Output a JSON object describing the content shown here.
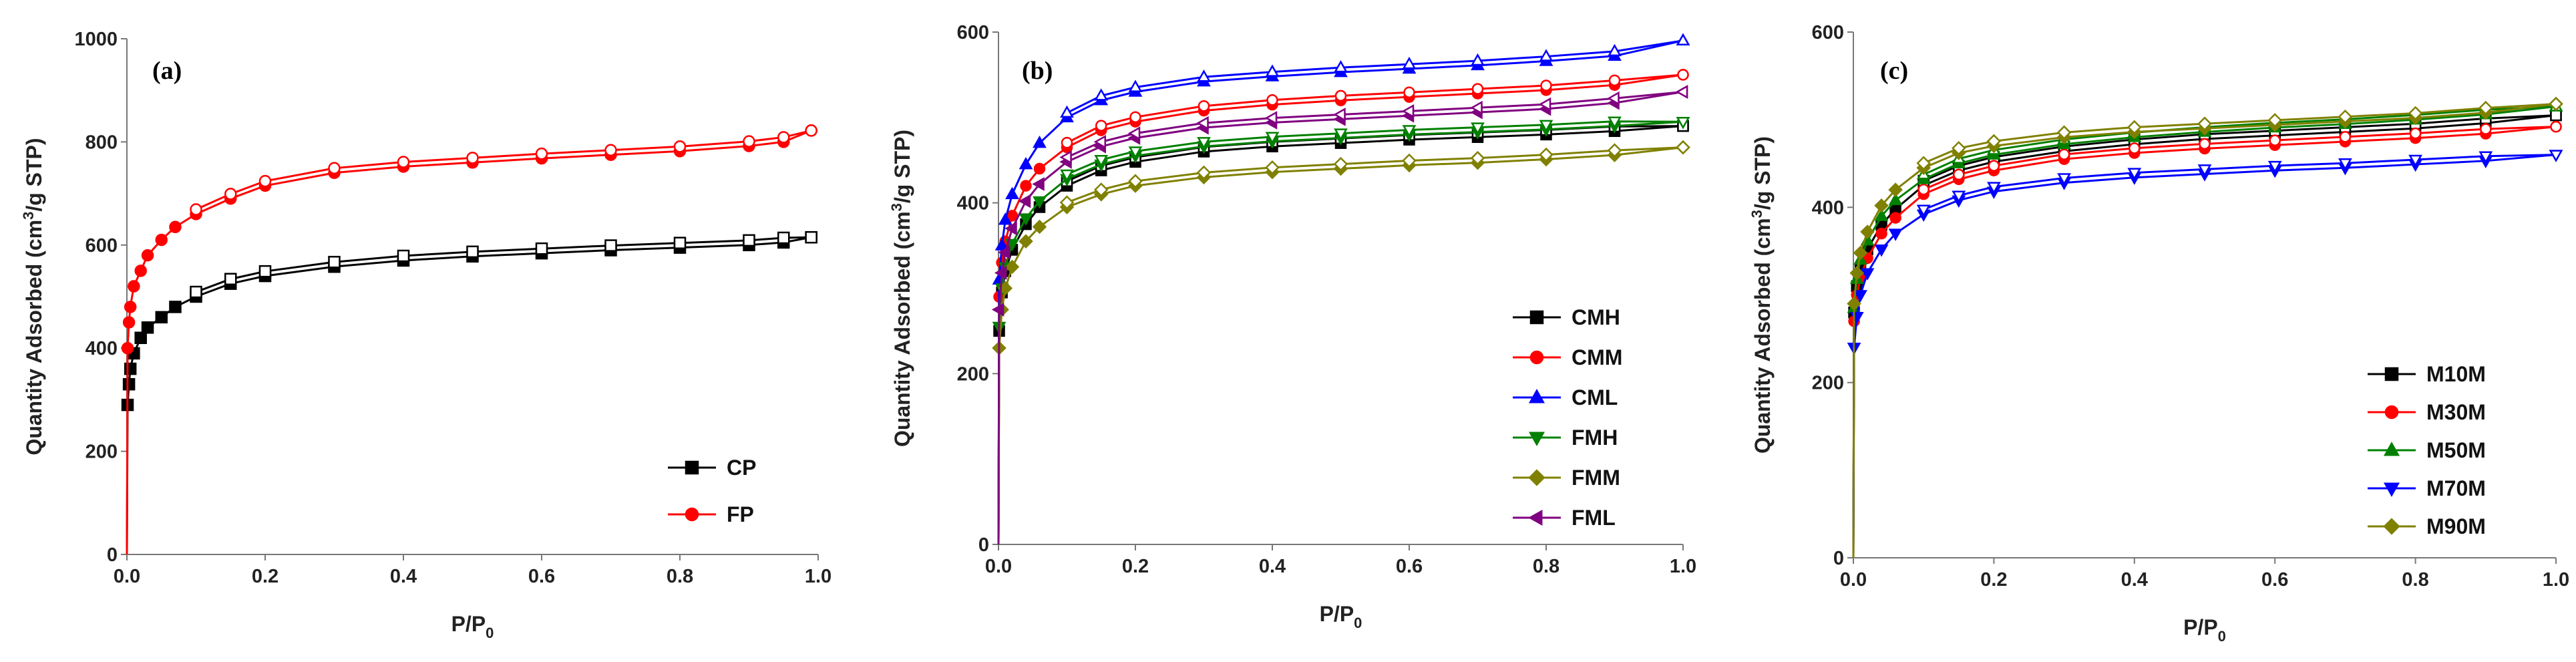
{
  "chart_data": [
    {
      "type": "line",
      "panel_label": "(a)",
      "xlabel": "P/P0",
      "xlabel_main": "P/P",
      "xlabel_sub": "0",
      "ylabel": "Quantity Adsorbed (cm3/g STP)",
      "ylabel_pre": "Quantity Adsorbed (cm",
      "ylabel_sup": "3",
      "ylabel_post": "/g STP)",
      "xlim": [
        0,
        1.0
      ],
      "ylim": [
        0,
        1000
      ],
      "xticks": [
        "0.0",
        "0.2",
        "0.4",
        "0.6",
        "0.8",
        "1.0"
      ],
      "yticks": [
        "0",
        "200",
        "400",
        "600",
        "800",
        "1000"
      ],
      "legend_position": "bottom-right",
      "series": [
        {
          "name": "CP",
          "color": "#000000",
          "marker": "square",
          "x": [
            0,
            0.001,
            0.003,
            0.005,
            0.01,
            0.02,
            0.03,
            0.05,
            0.07,
            0.1,
            0.15,
            0.2,
            0.3,
            0.4,
            0.5,
            0.6,
            0.7,
            0.8,
            0.9,
            0.95,
            0.99
          ],
          "y": [
            0,
            290,
            330,
            360,
            390,
            420,
            440,
            460,
            480,
            500,
            525,
            540,
            558,
            570,
            578,
            584,
            590,
            595,
            600,
            605,
            615
          ]
        },
        {
          "name": "FP",
          "color": "#ff0000",
          "marker": "circle",
          "x": [
            0,
            0.001,
            0.003,
            0.005,
            0.01,
            0.02,
            0.03,
            0.05,
            0.07,
            0.1,
            0.15,
            0.2,
            0.3,
            0.4,
            0.5,
            0.6,
            0.7,
            0.8,
            0.9,
            0.95,
            0.99
          ],
          "y": [
            0,
            400,
            450,
            480,
            520,
            550,
            580,
            610,
            635,
            660,
            690,
            715,
            740,
            752,
            760,
            768,
            775,
            782,
            792,
            800,
            822
          ]
        }
      ]
    },
    {
      "type": "line",
      "panel_label": "(b)",
      "xlabel": "P/P0",
      "xlabel_main": "P/P",
      "xlabel_sub": "0",
      "ylabel": "Quantity Adsorbed (cm3/g STP)",
      "ylabel_pre": "Quantity Adsorbed (cm",
      "ylabel_sup": "3",
      "ylabel_post": "/g STP)",
      "xlim": [
        0,
        1.0
      ],
      "ylim": [
        0,
        600
      ],
      "xticks": [
        "0.0",
        "0.2",
        "0.4",
        "0.6",
        "0.8",
        "1.0"
      ],
      "yticks": [
        "0",
        "200",
        "400",
        "600"
      ],
      "legend_position": "bottom-right",
      "series": [
        {
          "name": "CMH",
          "color": "#000000",
          "marker": "square",
          "x": [
            0,
            0.001,
            0.005,
            0.01,
            0.02,
            0.04,
            0.06,
            0.1,
            0.15,
            0.2,
            0.3,
            0.4,
            0.5,
            0.6,
            0.7,
            0.8,
            0.9,
            1.0
          ],
          "y": [
            0,
            250,
            295,
            320,
            345,
            375,
            395,
            420,
            438,
            448,
            460,
            466,
            470,
            474,
            477,
            480,
            484,
            490
          ]
        },
        {
          "name": "CMM",
          "color": "#ff0000",
          "marker": "circle",
          "x": [
            0,
            0.001,
            0.005,
            0.01,
            0.02,
            0.04,
            0.06,
            0.1,
            0.15,
            0.2,
            0.3,
            0.4,
            0.5,
            0.6,
            0.7,
            0.8,
            0.9,
            1.0
          ],
          "y": [
            0,
            290,
            330,
            355,
            385,
            420,
            440,
            465,
            485,
            495,
            508,
            515,
            520,
            524,
            528,
            532,
            538,
            550
          ]
        },
        {
          "name": "CML",
          "color": "#0000ff",
          "marker": "triangle",
          "x": [
            0,
            0.001,
            0.005,
            0.01,
            0.02,
            0.04,
            0.06,
            0.1,
            0.15,
            0.2,
            0.3,
            0.4,
            0.5,
            0.6,
            0.7,
            0.8,
            0.9,
            1.0
          ],
          "y": [
            0,
            310,
            350,
            380,
            410,
            445,
            470,
            500,
            520,
            530,
            542,
            548,
            553,
            557,
            561,
            566,
            572,
            590
          ]
        },
        {
          "name": "FMH",
          "color": "#008000",
          "marker": "triangle-down",
          "x": [
            0,
            0.001,
            0.005,
            0.01,
            0.02,
            0.04,
            0.06,
            0.1,
            0.15,
            0.2,
            0.3,
            0.4,
            0.5,
            0.6,
            0.7,
            0.8,
            0.9,
            1.0
          ],
          "y": [
            0,
            255,
            300,
            325,
            352,
            382,
            402,
            428,
            445,
            455,
            466,
            472,
            476,
            480,
            483,
            486,
            490,
            495
          ]
        },
        {
          "name": "FMM",
          "color": "#808000",
          "marker": "diamond",
          "x": [
            0,
            0.001,
            0.005,
            0.01,
            0.02,
            0.04,
            0.06,
            0.1,
            0.15,
            0.2,
            0.3,
            0.4,
            0.5,
            0.6,
            0.7,
            0.8,
            0.9,
            1.0
          ],
          "y": [
            0,
            230,
            275,
            300,
            325,
            355,
            372,
            395,
            410,
            420,
            430,
            436,
            440,
            444,
            447,
            451,
            456,
            465
          ]
        },
        {
          "name": "FML",
          "color": "#800080",
          "marker": "triangle-left",
          "x": [
            0,
            0.001,
            0.005,
            0.01,
            0.02,
            0.04,
            0.06,
            0.1,
            0.15,
            0.2,
            0.3,
            0.4,
            0.5,
            0.6,
            0.7,
            0.8,
            0.9,
            1.0
          ],
          "y": [
            0,
            275,
            318,
            342,
            370,
            402,
            422,
            448,
            466,
            476,
            488,
            494,
            498,
            502,
            506,
            510,
            517,
            530
          ]
        }
      ]
    },
    {
      "type": "line",
      "panel_label": "(c)",
      "xlabel": "P/P0",
      "xlabel_main": "P/P",
      "xlabel_sub": "0",
      "ylabel": "Quantity Adsorbed (cm3/g STP)",
      "ylabel_pre": "Quantity Adsorbed (cm",
      "ylabel_sup": "3",
      "ylabel_post": "/g STP)",
      "xlim": [
        0,
        1.0
      ],
      "ylim": [
        0,
        600
      ],
      "xticks": [
        "0.0",
        "0.2",
        "0.4",
        "0.6",
        "0.8",
        "1.0"
      ],
      "yticks": [
        "0",
        "200",
        "400",
        "600"
      ],
      "legend_position": "bottom-right",
      "series": [
        {
          "name": "M10M",
          "color": "#000000",
          "marker": "square",
          "x": [
            0,
            0.001,
            0.005,
            0.01,
            0.02,
            0.04,
            0.06,
            0.1,
            0.15,
            0.2,
            0.3,
            0.4,
            0.5,
            0.6,
            0.7,
            0.8,
            0.9,
            1.0
          ],
          "y": [
            0,
            280,
            310,
            330,
            352,
            380,
            398,
            425,
            442,
            452,
            464,
            472,
            478,
            482,
            486,
            490,
            496,
            505
          ]
        },
        {
          "name": "M30M",
          "color": "#ff0000",
          "marker": "circle",
          "x": [
            0,
            0.001,
            0.005,
            0.01,
            0.02,
            0.04,
            0.06,
            0.1,
            0.15,
            0.2,
            0.3,
            0.4,
            0.5,
            0.6,
            0.7,
            0.8,
            0.9,
            1.0
          ],
          "y": [
            0,
            270,
            300,
            320,
            342,
            370,
            388,
            415,
            432,
            442,
            455,
            462,
            467,
            471,
            475,
            479,
            484,
            492
          ]
        },
        {
          "name": "M50M",
          "color": "#008000",
          "marker": "triangle",
          "x": [
            0,
            0.001,
            0.005,
            0.01,
            0.02,
            0.04,
            0.06,
            0.1,
            0.15,
            0.2,
            0.3,
            0.4,
            0.5,
            0.6,
            0.7,
            0.8,
            0.9,
            1.0
          ],
          "y": [
            0,
            285,
            318,
            340,
            362,
            390,
            408,
            432,
            450,
            460,
            472,
            480,
            486,
            491,
            495,
            500,
            506,
            515
          ]
        },
        {
          "name": "M70M",
          "color": "#0000ff",
          "marker": "triangle-down",
          "x": [
            0,
            0.001,
            0.005,
            0.01,
            0.02,
            0.04,
            0.06,
            0.1,
            0.15,
            0.2,
            0.3,
            0.4,
            0.5,
            0.6,
            0.7,
            0.8,
            0.9,
            1.0
          ],
          "y": [
            0,
            240,
            275,
            300,
            325,
            352,
            370,
            392,
            408,
            418,
            428,
            434,
            438,
            442,
            445,
            449,
            453,
            460
          ]
        },
        {
          "name": "M90M",
          "color": "#808000",
          "marker": "diamond",
          "x": [
            0,
            0.001,
            0.005,
            0.01,
            0.02,
            0.04,
            0.06,
            0.1,
            0.15,
            0.2,
            0.3,
            0.4,
            0.5,
            0.6,
            0.7,
            0.8,
            0.9,
            1.0
          ],
          "y": [
            0,
            290,
            325,
            348,
            372,
            402,
            420,
            445,
            462,
            470,
            480,
            486,
            490,
            494,
            498,
            502,
            508,
            518
          ]
        }
      ]
    }
  ]
}
